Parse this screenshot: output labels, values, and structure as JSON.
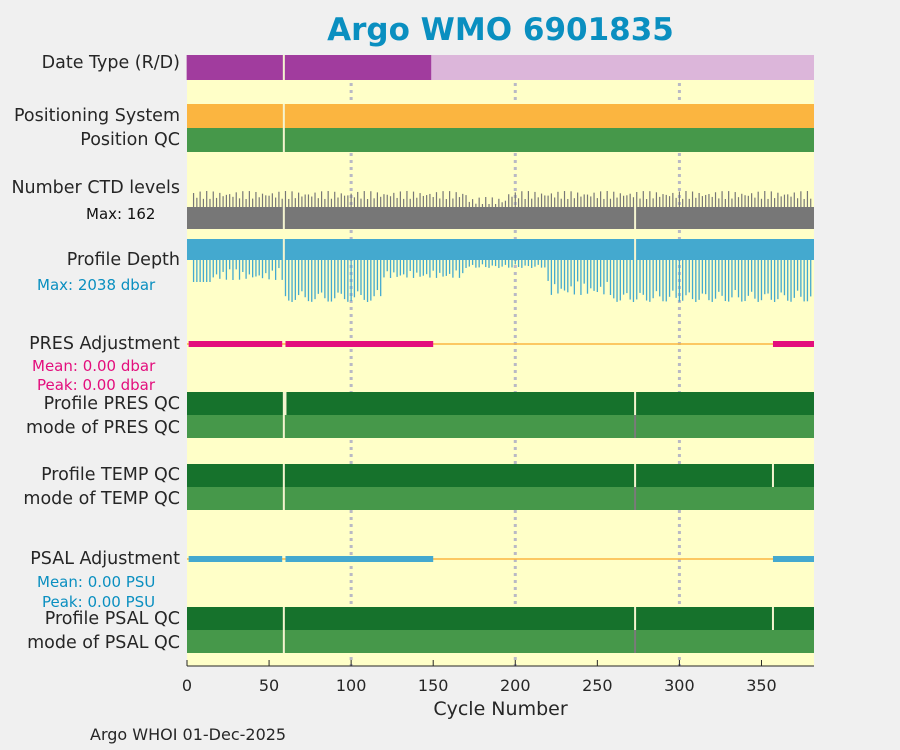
{
  "title": "Argo WMO 6901835",
  "footer": "Argo WHOI 01-Dec-2025",
  "colors": {
    "background": "#ffffc8",
    "title": "#0a8fc0",
    "realtime": "#a13c9e",
    "delayed": "#dcb6da",
    "positioning": "#fbb540",
    "qc_good": "#46984a",
    "qc_profile": "#16722c",
    "ctd": "#777777",
    "depth": "#44a9cf",
    "pres_adj": "#e30e7d",
    "psal_adj": "#44a9cf",
    "adj_line": "#fbb540",
    "grid": "#b9b9c5"
  },
  "labels": {
    "date_type": "Date Type (R/D)",
    "positioning": "Positioning System",
    "position_qc": "Position QC",
    "ctd_levels": "Number CTD levels",
    "ctd_max": "Max: 162",
    "profile_depth": "Profile Depth",
    "depth_max": "Max: 2038 dbar",
    "pres_adj": "PRES Adjustment",
    "pres_mean": "Mean: 0.00 dbar",
    "pres_peak": "Peak: 0.00 dbar",
    "profile_pres_qc": "Profile PRES QC",
    "mode_pres_qc": "mode of PRES QC",
    "profile_temp_qc": "Profile TEMP QC",
    "mode_temp_qc": "mode of TEMP QC",
    "psal_adj": "PSAL Adjustment",
    "psal_mean": "Mean: 0.00 PSU",
    "psal_peak": "Peak: 0.00 PSU",
    "profile_psal_qc": "Profile PSAL QC",
    "mode_psal_qc": "mode of PSAL QC"
  },
  "chart_data": {
    "type": "timeline",
    "xlabel": "Cycle Number",
    "xlim": [
      0,
      382
    ],
    "xticks": [
      0,
      50,
      100,
      150,
      200,
      250,
      300,
      350
    ],
    "grid_x": [
      100,
      200,
      300
    ],
    "gaps": [
      59,
      273
    ],
    "date_type": [
      {
        "from": 1,
        "to": 150,
        "mode": "R"
      },
      {
        "from": 150,
        "to": 382,
        "mode": "D"
      }
    ],
    "ctd_levels_max": 162,
    "profile_depth_max_dbar": 2038,
    "pres_adjustment": {
      "mean": 0.0,
      "peak": 0.0,
      "unit": "dbar",
      "bars": [
        [
          1,
          58
        ],
        [
          60,
          150
        ],
        [
          357,
          382
        ]
      ]
    },
    "psal_adjustment": {
      "mean": 0.0,
      "peak": 0.0,
      "unit": "PSU",
      "bars": [
        [
          1,
          58
        ],
        [
          60,
          150
        ],
        [
          357,
          382
        ]
      ]
    },
    "qc_markers": {
      "profile_pres_qc": [
        59,
        60,
        273
      ],
      "profile_temp_qc": [
        59,
        273,
        357
      ],
      "profile_psal_qc": [
        59,
        273,
        357
      ],
      "mode_pres_qc": [
        59,
        273
      ],
      "mode_temp_qc": [
        59,
        273
      ],
      "mode_psal_qc": [
        59,
        273
      ]
    }
  }
}
